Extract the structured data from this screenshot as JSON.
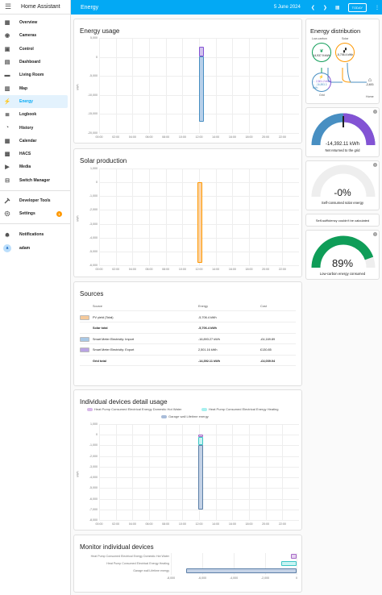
{
  "app": {
    "title": "Home Assistant"
  },
  "sidebar": {
    "items": [
      {
        "label": "Overview",
        "icon": "grid-icon"
      },
      {
        "label": "Cameras",
        "icon": "camera-icon"
      },
      {
        "label": "Control",
        "icon": "control-icon"
      },
      {
        "label": "Dashboard",
        "icon": "dashboard-icon"
      },
      {
        "label": "Living Room",
        "icon": "sofa-icon"
      },
      {
        "label": "Map",
        "icon": "map-icon"
      },
      {
        "label": "Energy",
        "icon": "lightning-icon"
      },
      {
        "label": "Logbook",
        "icon": "logbook-icon"
      },
      {
        "label": "History",
        "icon": "history-icon"
      },
      {
        "label": "Calendar",
        "icon": "calendar-icon"
      },
      {
        "label": "HACS",
        "icon": "hacs-icon"
      },
      {
        "label": "Media",
        "icon": "media-icon"
      },
      {
        "label": "Switch Manager",
        "icon": "switch-icon"
      }
    ],
    "developer_tools": "Developer Tools",
    "settings": "Settings",
    "settings_badge": "1",
    "notifications": "Notifications",
    "user": "adam",
    "user_initial": "a"
  },
  "topbar": {
    "title": "Energy",
    "date": "5 June 2024",
    "today": "TODAY"
  },
  "energy_usage": {
    "title": "Energy usage",
    "unit": "kWh",
    "yticks": [
      "5,000",
      "0",
      "-5,000",
      "-10,000",
      "-15,000",
      "-20,000"
    ],
    "xticks": [
      "00:00",
      "02:00",
      "04:00",
      "06:00",
      "08:00",
      "10:00",
      "12:00",
      "14:00",
      "16:00",
      "18:00",
      "20:00",
      "22:00"
    ]
  },
  "solar": {
    "title": "Solar production",
    "unit": "kWh",
    "yticks": [
      "1,000",
      "0",
      "-1,000",
      "-2,000",
      "-3,000",
      "-4,000",
      "-5,000",
      "-6,000"
    ],
    "xticks": [
      "00:00",
      "02:00",
      "04:00",
      "06:00",
      "08:00",
      "10:00",
      "12:00",
      "14:00",
      "16:00",
      "18:00",
      "20:00",
      "22:00"
    ]
  },
  "sources": {
    "title": "Sources",
    "headers": {
      "source": "Source",
      "energy": "Energy",
      "cost": "Cost"
    },
    "rows": [
      {
        "name": "PV yield (Total)",
        "energy": "-5,706.4 kWh",
        "cost": "",
        "color": "#f5c99a"
      },
      {
        "name": "Solar total",
        "energy": "-5,706.4 kWh",
        "cost": "",
        "color": ""
      },
      {
        "name": "Smart Meter Electricity: Import",
        "energy": "-16,893.27 kWh",
        "cost": "-£4,169.89",
        "color": "#a8c8e6"
      },
      {
        "name": "Smart Meter Electricity: Export",
        "energy": "2,501.16 kWh",
        "cost": "£130.85",
        "color": "#b9a3e3"
      },
      {
        "name": "Grid total",
        "energy": "-14,392.11 kWh",
        "cost": "-£4,039.04",
        "color": ""
      }
    ]
  },
  "devices_detail": {
    "title": "Individual devices detail usage",
    "legend": [
      {
        "label": "Heat Pump Consumed Electrical Energy Domestic Hot Water",
        "color": "#d7b8e8"
      },
      {
        "label": "Heat Pump Consumed Electrical Energy Heating",
        "color": "#a6f0ef"
      },
      {
        "label": "Garage wall Lifetime energy",
        "color": "#a8bcd9"
      }
    ],
    "unit": "kWh",
    "yticks": [
      "1,000",
      "0",
      "-1,000",
      "-2,000",
      "-3,000",
      "-4,000",
      "-5,000",
      "-6,000",
      "-7,000",
      "-8,000"
    ],
    "xticks": [
      "00:00",
      "02:00",
      "04:00",
      "06:00",
      "08:00",
      "10:00",
      "12:00",
      "14:00",
      "16:00",
      "18:00",
      "20:00",
      "22:00"
    ]
  },
  "monitor": {
    "title": "Monitor individual devices",
    "rows": [
      "Heat Pump Consumed Electrical Energy Domestic Hot Water",
      "Heat Pump Consumed Electrical Energy Heating",
      "Garage wall Lifetime energy"
    ],
    "xticks": [
      "-8,000",
      "-6,000",
      "-4,000",
      "-2,000",
      "0"
    ],
    "unit": "kWh"
  },
  "distribution": {
    "title": "Energy distribution",
    "low_carbon": "Low-carbon",
    "solar": "Solar",
    "low_carbon_value": "14,937.9 kWh",
    "solar_value": "-5,706.4 kWh",
    "grid_out": "← 2,501.2 kWh",
    "grid_in": "→ -16,893.3 kWh",
    "grid": "Grid",
    "home_value": "-2,400.",
    "home": "Home"
  },
  "gauges": {
    "net": {
      "value": "-14,392.11 kWh",
      "label": "Net returned to the grid",
      "fill_fraction": 0.5
    },
    "self": {
      "value": "-0%",
      "label": "Self-consumed solar energy"
    },
    "sufficiency": "Self-sufficiency couldn't be calculated",
    "low_carbon": {
      "value": "89%",
      "label": "Low-carbon energy consumed",
      "fill_fraction": 0.89
    }
  },
  "colors": {
    "accent": "#03a9f4",
    "grid_import": "#488fc2",
    "grid_export": "#8353d4",
    "solar": "#ff9800",
    "low_carbon": "#0f9d58"
  }
}
